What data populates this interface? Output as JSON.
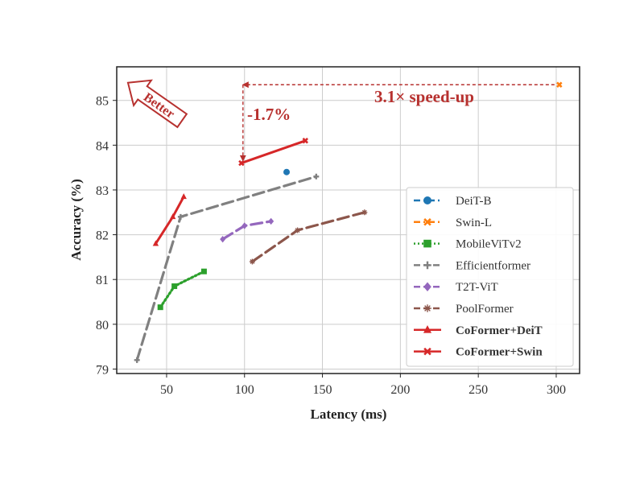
{
  "chart_data": {
    "type": "line",
    "xlabel": "Latency (ms)",
    "ylabel": "Accuracy (%)",
    "xlim": [
      18,
      315
    ],
    "ylim": [
      78.9,
      85.75
    ],
    "xticks": [
      "50",
      "100",
      "150",
      "200",
      "250",
      "300"
    ],
    "yticks": [
      "79",
      "80",
      "81",
      "82",
      "83",
      "84",
      "85"
    ],
    "grid": true,
    "legend_position": "lower-right",
    "series": [
      {
        "name": "DeiT-B",
        "color": "#1f77b4",
        "marker": "circle",
        "dash": "dashdot",
        "bold": false,
        "x": [
          127
        ],
        "y": [
          83.4
        ]
      },
      {
        "name": "Swin-L",
        "color": "#ff7f0e",
        "marker": "x-thick",
        "dash": "dashdot",
        "bold": false,
        "x": [
          302
        ],
        "y": [
          85.35
        ]
      },
      {
        "name": "MobileViTv2",
        "color": "#2ca02c",
        "marker": "square",
        "dash": "dotted",
        "bold": false,
        "x": [
          46,
          55,
          74
        ],
        "y": [
          80.38,
          80.85,
          81.18
        ]
      },
      {
        "name": "Efficientformer",
        "color": "#808080",
        "marker": "plus",
        "dash": "longdash",
        "bold": false,
        "x": [
          31,
          59,
          146
        ],
        "y": [
          79.2,
          82.4,
          83.3
        ]
      },
      {
        "name": "T2T-ViT",
        "color": "#9467bd",
        "marker": "diamond",
        "dash": "longdash",
        "bold": false,
        "x": [
          86,
          100,
          117
        ],
        "y": [
          81.9,
          82.2,
          82.3
        ]
      },
      {
        "name": "PoolFormer",
        "color": "#8c564b",
        "marker": "star",
        "dash": "longdash",
        "bold": false,
        "x": [
          105,
          134,
          177
        ],
        "y": [
          81.4,
          82.1,
          82.5
        ]
      },
      {
        "name": "CoFormer+DeiT",
        "color": "#d62728",
        "marker": "triangle",
        "dash": "solid",
        "bold": true,
        "x": [
          43,
          54,
          61
        ],
        "y": [
          81.8,
          82.4,
          82.85
        ]
      },
      {
        "name": "CoFormer+Swin",
        "color": "#d62728",
        "marker": "x-thick",
        "dash": "solid",
        "bold": true,
        "x": [
          98,
          139
        ],
        "y": [
          83.6,
          84.1
        ]
      }
    ],
    "annotations": {
      "better": "Better",
      "drop": "-1.7%",
      "speedup": "3.1× speed-up",
      "speedup_arrow": {
        "from_x": 302,
        "to_x": 99,
        "y": 85.35
      },
      "drop_arrow": {
        "x": 99,
        "from_y": 85.35,
        "to_y": 83.65
      }
    },
    "colors": {
      "annotation": "#b7312f",
      "grid": "#cccccc",
      "axes": "#222222"
    }
  }
}
